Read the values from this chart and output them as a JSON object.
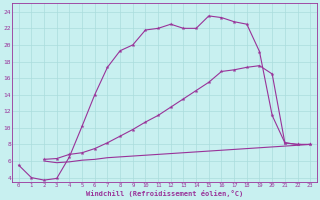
{
  "xlabel": "Windchill (Refroidissement éolien,°C)",
  "bg_color": "#c8f0f0",
  "line_color": "#993399",
  "grid_color": "#aadddd",
  "xlim": [
    -0.5,
    23.5
  ],
  "ylim": [
    3.5,
    25
  ],
  "yticks": [
    4,
    6,
    8,
    10,
    12,
    14,
    16,
    18,
    20,
    22,
    24
  ],
  "xticks": [
    0,
    1,
    2,
    3,
    4,
    5,
    6,
    7,
    8,
    9,
    10,
    11,
    12,
    13,
    14,
    15,
    16,
    17,
    18,
    19,
    20,
    21,
    22,
    23
  ],
  "line1_x": [
    0,
    1,
    2,
    3,
    4,
    5,
    6,
    7,
    8,
    9,
    10,
    11,
    12,
    13,
    14,
    15,
    16,
    17,
    18,
    19,
    20,
    21,
    22,
    23
  ],
  "line1_y": [
    5.5,
    4.0,
    3.7,
    3.9,
    6.5,
    10.2,
    14.0,
    17.3,
    19.3,
    20.0,
    21.8,
    22.0,
    22.5,
    22.0,
    22.0,
    23.5,
    23.3,
    22.8,
    22.5,
    19.2,
    11.5,
    8.2,
    8.0,
    8.0
  ],
  "line2_x": [
    2,
    3,
    4,
    5,
    6,
    7,
    8,
    9,
    10,
    11,
    12,
    13,
    14,
    15,
    16,
    17,
    18,
    19,
    20,
    21,
    22,
    23
  ],
  "line2_y": [
    6.2,
    6.3,
    6.8,
    7.0,
    7.5,
    8.2,
    9.0,
    9.8,
    10.7,
    11.5,
    12.5,
    13.5,
    14.5,
    15.5,
    16.8,
    17.0,
    17.3,
    17.5,
    16.5,
    8.2,
    8.0,
    8.0
  ],
  "line3_x": [
    2,
    3,
    4,
    5,
    6,
    7,
    8,
    9,
    10,
    11,
    12,
    13,
    14,
    15,
    16,
    17,
    18,
    19,
    20,
    21,
    22,
    23
  ],
  "line3_y": [
    6.0,
    5.8,
    5.9,
    6.1,
    6.2,
    6.4,
    6.5,
    6.6,
    6.7,
    6.8,
    6.9,
    7.0,
    7.1,
    7.2,
    7.3,
    7.4,
    7.5,
    7.6,
    7.7,
    7.8,
    7.9,
    8.0
  ]
}
